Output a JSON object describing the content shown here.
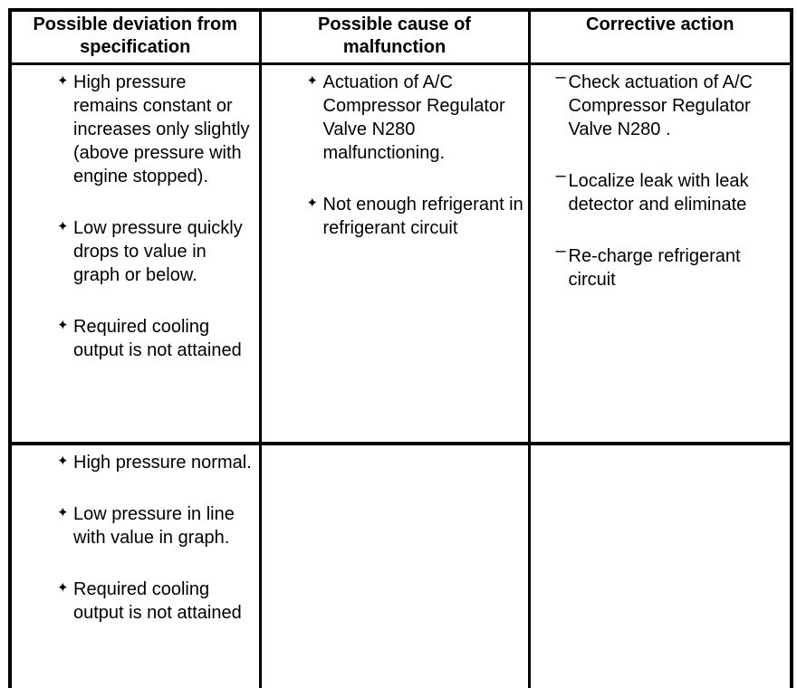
{
  "table": {
    "headers": [
      "Possible deviation from specification",
      "Possible cause of malfunction",
      "Corrective action"
    ],
    "bullets": {
      "star": "✦",
      "dash": "–"
    },
    "rows": [
      {
        "deviation": [
          "High pressure remains constant or increases only slightly (above pressure with engine stopped).",
          "Low pressure quickly drops to value in graph or below.",
          "Required cooling output is not attained"
        ],
        "cause": [
          "Actuation of A/C Compressor Regulator Valve N280 malfunctioning.",
          "Not enough refrigerant in refrigerant circuit"
        ],
        "action": [
          "Check actuation of A/C Compressor Regulator Valve N280 .",
          "Localize leak with leak detector and eliminate",
          "Re-charge refrigerant circuit"
        ]
      },
      {
        "deviation": [
          "High pressure normal.",
          "Low pressure in line with value in graph.",
          "Required cooling output is not attained"
        ],
        "cause": [],
        "action": []
      }
    ]
  }
}
